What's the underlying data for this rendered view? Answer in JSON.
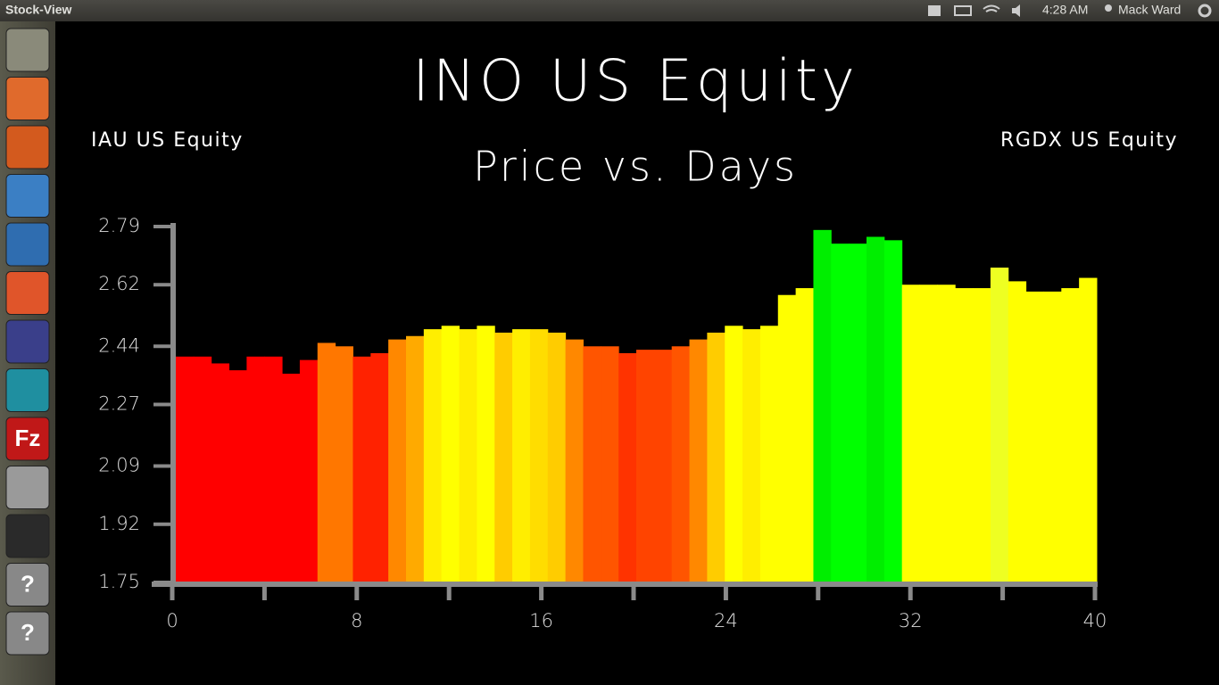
{
  "window": {
    "title": "Stock-View",
    "clock": "4:28 AM",
    "user": "Mack Ward"
  },
  "launcher": {
    "icon_labels": [
      "Fz",
      "?",
      "?"
    ]
  },
  "chart_data": {
    "type": "bar",
    "title": "INO US Equity",
    "subtitle": "Price vs. Days",
    "left_label": "IAU US Equity",
    "right_label": "RGDX US Equity",
    "values": [
      2.41,
      2.41,
      2.39,
      2.37,
      2.41,
      2.41,
      2.36,
      2.4,
      2.45,
      2.44,
      2.41,
      2.42,
      2.46,
      2.47,
      2.49,
      2.5,
      2.49,
      2.5,
      2.48,
      2.49,
      2.49,
      2.48,
      2.46,
      2.44,
      2.44,
      2.42,
      2.43,
      2.43,
      2.44,
      2.46,
      2.48,
      2.5,
      2.49,
      2.5,
      2.59,
      2.61,
      2.78,
      2.74,
      2.74,
      2.76,
      2.75,
      2.62,
      2.62,
      2.62,
      2.61,
      2.61,
      2.67,
      2.63,
      2.6,
      2.6,
      2.61,
      2.64
    ],
    "colors": [
      "#ff0000",
      "#ff0000",
      "#ff0000",
      "#ff0000",
      "#ff0000",
      "#ff0000",
      "#ff0000",
      "#ff0000",
      "#ff7700",
      "#ff7700",
      "#ff2200",
      "#ff2200",
      "#ff8800",
      "#ffaa00",
      "#ffee00",
      "#ffff00",
      "#ffee00",
      "#ffff00",
      "#ffcc00",
      "#ffee00",
      "#ffdd00",
      "#ffcc00",
      "#ff8800",
      "#ff5500",
      "#ff5500",
      "#ff3300",
      "#ff4400",
      "#ff4400",
      "#ff5500",
      "#ff8800",
      "#ffcc00",
      "#ffff00",
      "#ffee00",
      "#ffff00",
      "#ffff00",
      "#ffff00",
      "#00ee00",
      "#00ff00",
      "#00ff00",
      "#00ee00",
      "#00ff00",
      "#ffff00",
      "#ffff00",
      "#ffff00",
      "#ffff00",
      "#ffff00",
      "#eeff22",
      "#ffff00",
      "#ffff00",
      "#ffff00",
      "#ffff00",
      "#ffff00"
    ],
    "xlim": [
      0,
      40
    ],
    "xticks": [
      0,
      8,
      16,
      24,
      32,
      40
    ],
    "xminor_ticks": [
      4,
      12,
      20,
      28,
      36
    ],
    "ylim": [
      1.75,
      2.79
    ],
    "yticks": [
      1.75,
      1.92,
      2.09,
      2.27,
      2.44,
      2.62,
      2.79
    ]
  }
}
